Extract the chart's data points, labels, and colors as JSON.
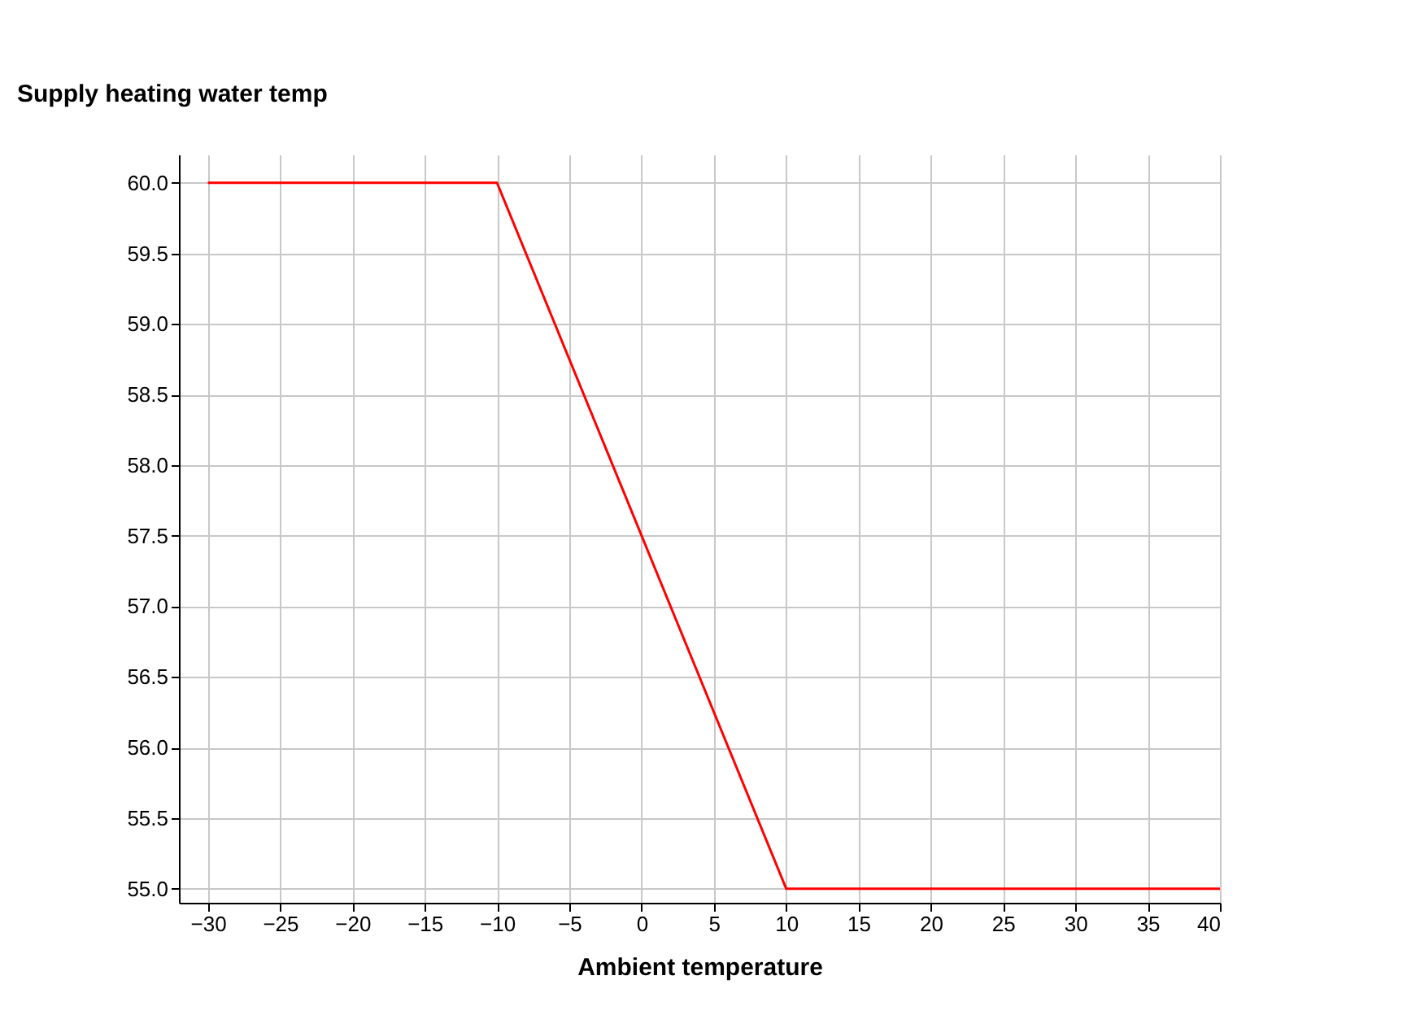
{
  "chart_data": {
    "type": "line",
    "xlabel": "Ambient temperature",
    "ylabel": "Supply heating water temp",
    "x": [
      -30,
      -10,
      10,
      40
    ],
    "series": [
      {
        "color": "#ff0000",
        "values": [
          60,
          60,
          55,
          55
        ]
      }
    ],
    "xlim": [
      -32,
      40
    ],
    "xticks": [
      -30,
      -25,
      -20,
      -15,
      -10,
      -5,
      0,
      5,
      10,
      15,
      20,
      25,
      30,
      35,
      40
    ],
    "ylim": [
      54.9,
      60.2
    ],
    "yticks": [
      {
        "value": 55,
        "label": "55.0"
      },
      {
        "value": 55.5,
        "label": "55.5"
      },
      {
        "value": 56,
        "label": "56.0"
      },
      {
        "value": 56.5,
        "label": "56.5"
      },
      {
        "value": 57,
        "label": "57.0"
      },
      {
        "value": 57.5,
        "label": "57.5"
      },
      {
        "value": 58,
        "label": "58.0"
      },
      {
        "value": 58.5,
        "label": "58.5"
      },
      {
        "value": 59,
        "label": "59.0"
      },
      {
        "value": 59.5,
        "label": "59.5"
      },
      {
        "value": 60,
        "label": "60.0"
      }
    ],
    "grid": true,
    "marker": "none",
    "line_style": "solid"
  }
}
